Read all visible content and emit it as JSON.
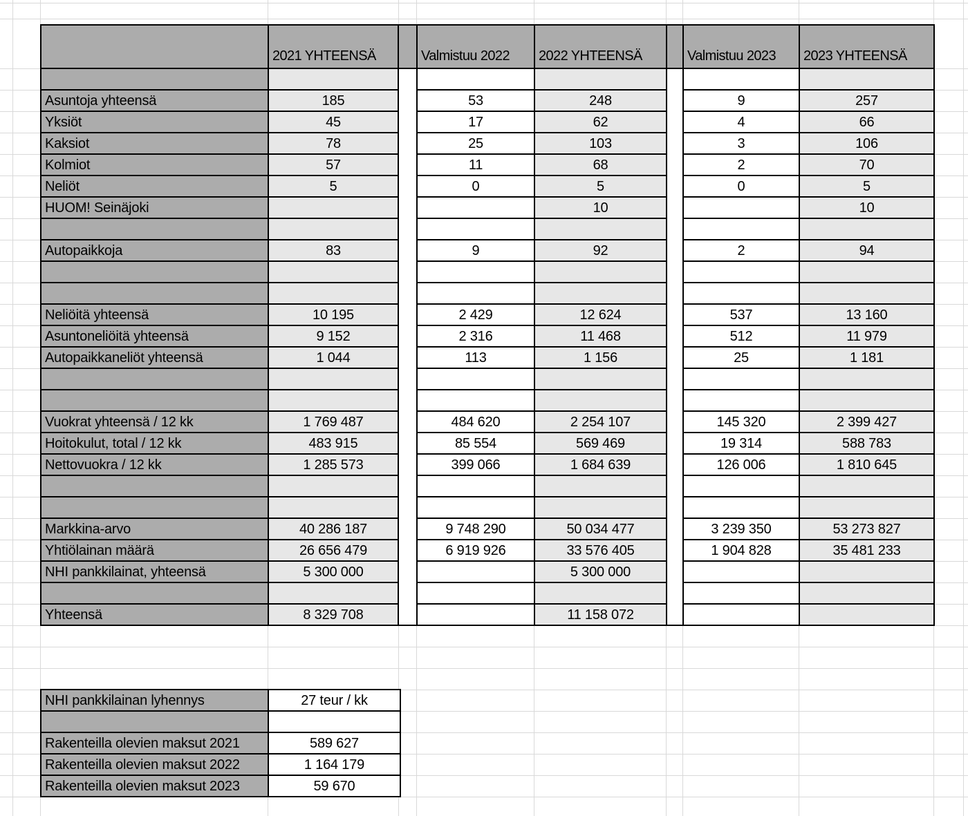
{
  "colors": {
    "header_gray": "#acacac",
    "cell_light_gray": "#e7e7e7",
    "grid_line": "#d9d9d9",
    "cell_border": "#000000"
  },
  "table": {
    "headers": [
      "2021 YHTEENSÄ",
      "Valmistuu 2022",
      "2022 YHTEENSÄ",
      "Valmistuu 2023",
      "2023 YHTEENSÄ"
    ],
    "rows": [
      {
        "label": "",
        "values": [
          "",
          "",
          "",
          "",
          ""
        ]
      },
      {
        "label": "Asuntoja yhteensä",
        "values": [
          "185",
          "53",
          "248",
          "9",
          "257"
        ]
      },
      {
        "label": "Yksiöt",
        "values": [
          "45",
          "17",
          "62",
          "4",
          "66"
        ]
      },
      {
        "label": "Kaksiot",
        "values": [
          "78",
          "25",
          "103",
          "3",
          "106"
        ]
      },
      {
        "label": "Kolmiot",
        "values": [
          "57",
          "11",
          "68",
          "2",
          "70"
        ]
      },
      {
        "label": "Neliöt",
        "values": [
          "5",
          "0",
          "5",
          "0",
          "5"
        ]
      },
      {
        "label": "HUOM! Seinäjoki",
        "values": [
          "",
          "",
          "10",
          "",
          "10"
        ]
      },
      {
        "label": "",
        "values": [
          "",
          "",
          "",
          "",
          ""
        ]
      },
      {
        "label": "Autopaikkoja",
        "values": [
          "83",
          "9",
          "92",
          "2",
          "94"
        ]
      },
      {
        "label": "",
        "values": [
          "",
          "",
          "",
          "",
          ""
        ]
      },
      {
        "label": "",
        "values": [
          "",
          "",
          "",
          "",
          ""
        ]
      },
      {
        "label": "Neliöitä yhteensä",
        "values": [
          "10 195",
          "2 429",
          "12 624",
          "537",
          "13 160"
        ]
      },
      {
        "label": "Asuntoneliöitä yhteensä",
        "values": [
          "9 152",
          "2 316",
          "11 468",
          "512",
          "11 979"
        ]
      },
      {
        "label": "Autopaikkaneliöt yhteensä",
        "values": [
          "1 044",
          "113",
          "1 156",
          "25",
          "1 181"
        ]
      },
      {
        "label": "",
        "values": [
          "",
          "",
          "",
          "",
          ""
        ]
      },
      {
        "label": "",
        "values": [
          "",
          "",
          "",
          "",
          ""
        ]
      },
      {
        "label": "Vuokrat yhteensä / 12 kk",
        "values": [
          "1 769 487",
          "484 620",
          "2 254 107",
          "145 320",
          "2 399 427"
        ]
      },
      {
        "label": "Hoitokulut, total / 12 kk",
        "values": [
          "483 915",
          "85 554",
          "569 469",
          "19 314",
          "588 783"
        ]
      },
      {
        "label": "Nettovuokra / 12 kk",
        "values": [
          "1 285 573",
          "399 066",
          "1 684 639",
          "126 006",
          "1 810 645"
        ]
      },
      {
        "label": "",
        "values": [
          "",
          "",
          "",
          "",
          ""
        ]
      },
      {
        "label": "",
        "values": [
          "",
          "",
          "",
          "",
          ""
        ]
      },
      {
        "label": "Markkina-arvo",
        "values": [
          "40 286 187",
          "9 748 290",
          "50 034 477",
          "3 239 350",
          "53 273 827"
        ]
      },
      {
        "label": "Yhtiölainan määrä",
        "values": [
          "26 656 479",
          "6 919 926",
          "33 576 405",
          "1 904 828",
          "35 481 233"
        ]
      },
      {
        "label": "NHI pankkilainat, yhteensä",
        "values": [
          "5 300 000",
          "",
          "5 300 000",
          "",
          ""
        ]
      },
      {
        "label": "",
        "values": [
          "",
          "",
          "",
          "",
          ""
        ]
      },
      {
        "label": "Yhteensä",
        "values": [
          "8 329 708",
          "",
          "11 158 072",
          "",
          ""
        ]
      }
    ]
  },
  "bottom_table": {
    "rows": [
      {
        "label": "NHI pankkilainan lyhennys",
        "value": "27 teur / kk"
      },
      {
        "label": "",
        "value": ""
      },
      {
        "label": "Rakenteilla olevien maksut 2021",
        "value": "589 627"
      },
      {
        "label": "Rakenteilla olevien maksut 2022",
        "value": "1 164 179"
      },
      {
        "label": "Rakenteilla olevien maksut 2023",
        "value": "59 670"
      }
    ]
  }
}
